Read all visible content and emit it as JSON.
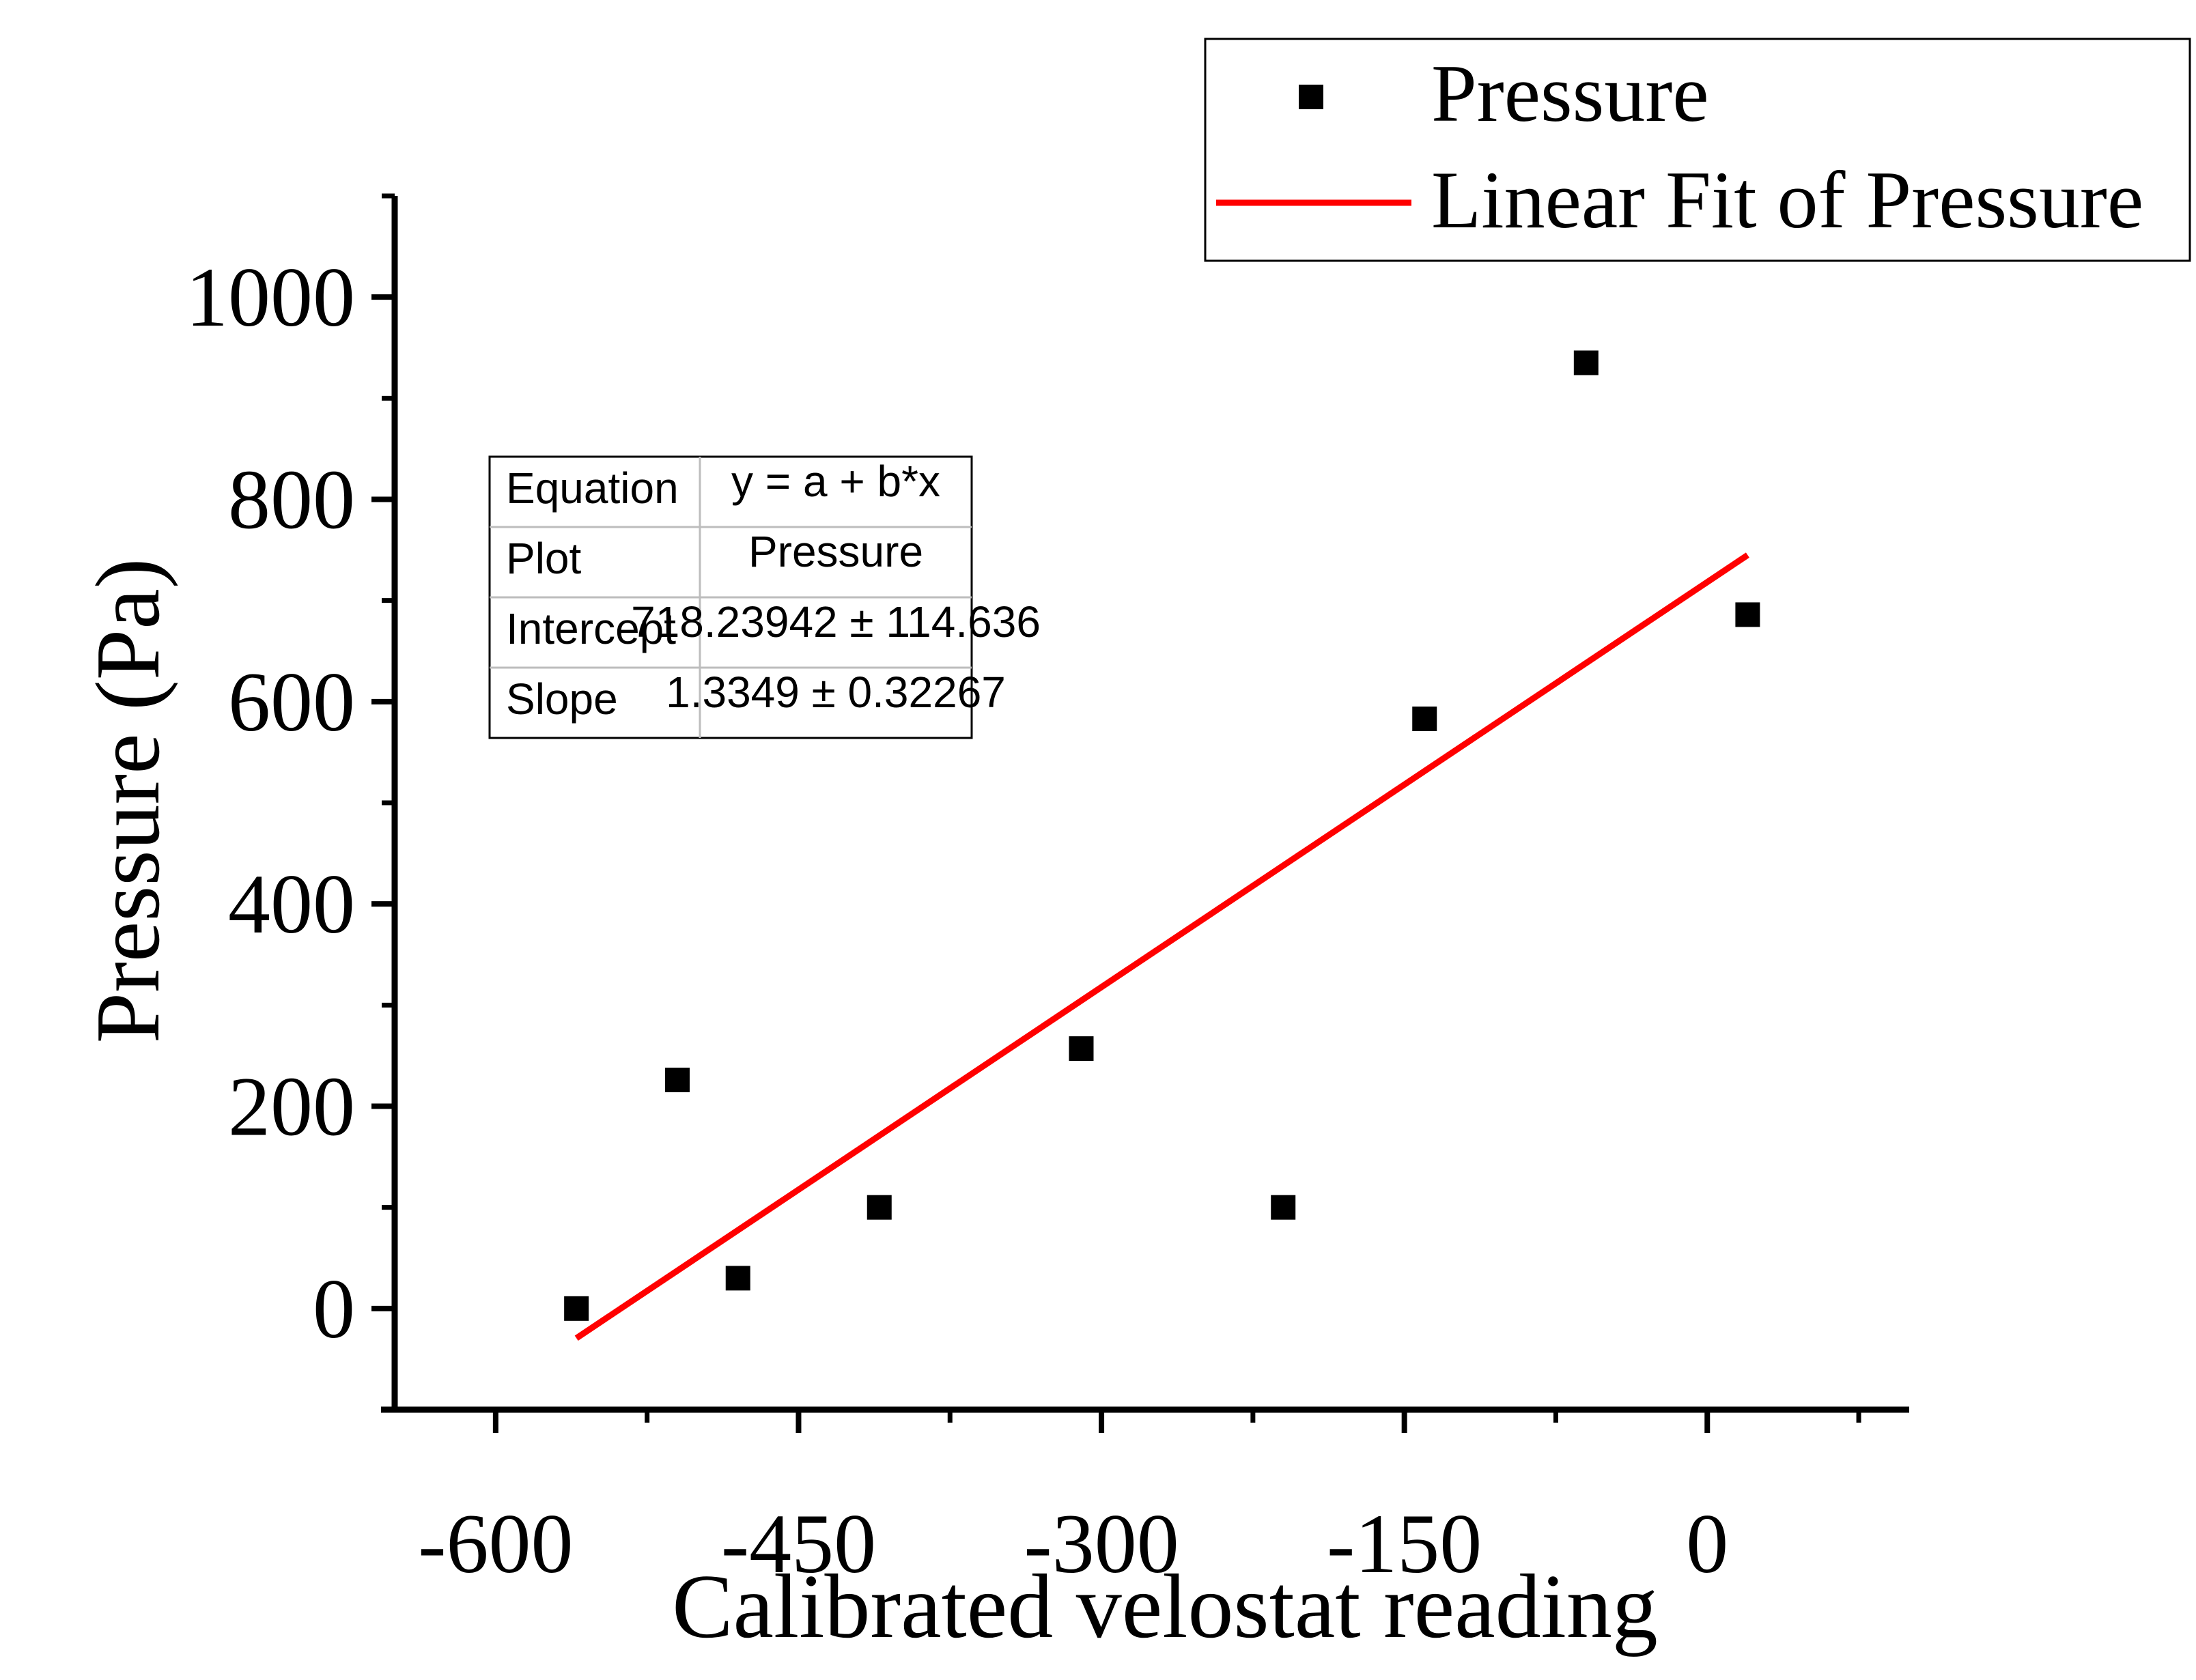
{
  "chart_data": {
    "type": "scatter",
    "xlabel": "Calibrated velostat reading",
    "ylabel": "Pressure (Pa)",
    "xlim": [
      -650,
      100
    ],
    "ylim": [
      -100,
      1100
    ],
    "x_ticks": [
      -600,
      -450,
      -300,
      -150,
      0
    ],
    "y_ticks": [
      0,
      200,
      400,
      600,
      800,
      1000
    ],
    "grid": false,
    "legend_position": "top-right",
    "series": [
      {
        "name": "Pressure",
        "kind": "scatter",
        "marker": "square",
        "color": "#000000",
        "points": [
          {
            "x": -560,
            "y": 0
          },
          {
            "x": -510,
            "y": 226
          },
          {
            "x": -480,
            "y": 30
          },
          {
            "x": -410,
            "y": 100
          },
          {
            "x": -310,
            "y": 257
          },
          {
            "x": -210,
            "y": 100
          },
          {
            "x": -140,
            "y": 583
          },
          {
            "x": -60,
            "y": 935
          },
          {
            "x": 20,
            "y": 686
          }
        ]
      },
      {
        "name": "Linear Fit of Pressure",
        "kind": "line",
        "color": "#ff0000",
        "intercept": 718.23942,
        "slope": 1.3349,
        "x_range": [
          -560,
          20
        ]
      }
    ],
    "fit_table": {
      "rows": [
        {
          "label": "Equation",
          "value": "y = a + b*x"
        },
        {
          "label": "Plot",
          "value": "Pressure"
        },
        {
          "label": "Intercept",
          "value": "718.23942 ± 114.636"
        },
        {
          "label": "Slope",
          "value": "1.3349 ± 0.32267"
        }
      ]
    }
  }
}
